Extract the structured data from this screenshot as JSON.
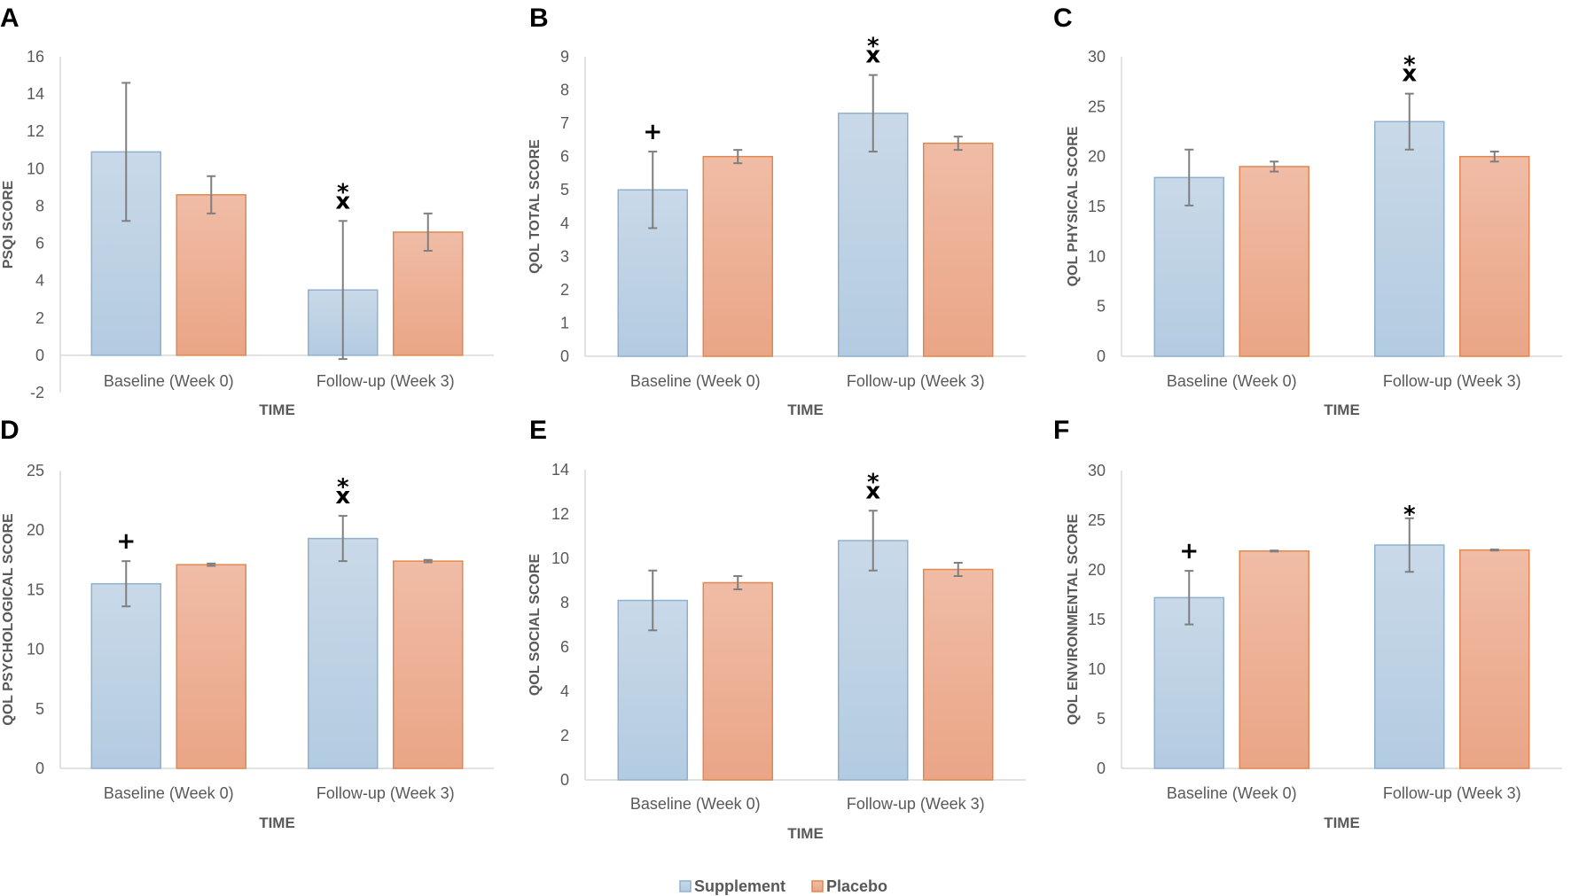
{
  "legend": [
    {
      "name": "Supplement",
      "color_top": "#c9d9e8",
      "color_bottom": "#b3cbe1",
      "stroke": "#8fb1d1"
    },
    {
      "name": "Placebo",
      "color_top": "#f0bca6",
      "color_bottom": "#eaa586",
      "stroke": "#e2884f"
    }
  ],
  "chart_data": [
    {
      "panel": "A",
      "type": "bar",
      "ylabel": "PSQI SCORE",
      "xlabel": "TIME",
      "categories": [
        "Baseline (Week 0)",
        "Follow-up (Week 3)"
      ],
      "ylim": [
        -2,
        16
      ],
      "yticks": [
        -2,
        0,
        2,
        4,
        6,
        8,
        10,
        12,
        14,
        16
      ],
      "series": [
        {
          "name": "Supplement",
          "values": [
            10.9,
            3.5
          ],
          "errors": [
            3.7,
            3.7
          ]
        },
        {
          "name": "Placebo",
          "values": [
            8.6,
            6.6
          ],
          "errors": [
            1.0,
            1.0
          ]
        }
      ],
      "annotations": [
        {
          "category": 1,
          "series": 0,
          "symbols": [
            "*",
            "x"
          ]
        }
      ]
    },
    {
      "panel": "B",
      "type": "bar",
      "ylabel": "QOL TOTAL SCORE",
      "xlabel": "TIME",
      "categories": [
        "Baseline (Week 0)",
        "Follow-up (Week 3)"
      ],
      "ylim": [
        0,
        9
      ],
      "yticks": [
        0,
        1,
        2,
        3,
        4,
        5,
        6,
        7,
        8,
        9
      ],
      "series": [
        {
          "name": "Supplement",
          "values": [
            5.0,
            7.3
          ],
          "errors": [
            1.15,
            1.15
          ]
        },
        {
          "name": "Placebo",
          "values": [
            6.0,
            6.4
          ],
          "errors": [
            0.2,
            0.2
          ]
        }
      ],
      "annotations": [
        {
          "category": 0,
          "series": 0,
          "symbols": [
            "+"
          ]
        },
        {
          "category": 1,
          "series": 0,
          "symbols": [
            "*",
            "x"
          ]
        }
      ]
    },
    {
      "panel": "C",
      "type": "bar",
      "ylabel": "QOL PHYSICAL SCORE",
      "xlabel": "TIME",
      "categories": [
        "Baseline (Week 0)",
        "Follow-up (Week 3)"
      ],
      "ylim": [
        0,
        30
      ],
      "yticks": [
        0,
        5,
        10,
        15,
        20,
        25,
        30
      ],
      "series": [
        {
          "name": "Supplement",
          "values": [
            17.9,
            23.5
          ],
          "errors": [
            2.8,
            2.8
          ]
        },
        {
          "name": "Placebo",
          "values": [
            19.0,
            20.0
          ],
          "errors": [
            0.5,
            0.5
          ]
        }
      ],
      "annotations": [
        {
          "category": 1,
          "series": 0,
          "symbols": [
            "*",
            "x"
          ]
        }
      ]
    },
    {
      "panel": "D",
      "type": "bar",
      "ylabel": "QOL PSYCHOLOGICAL SCORE",
      "xlabel": "TIME",
      "categories": [
        "Baseline (Week 0)",
        "Follow-up (Week 3)"
      ],
      "ylim": [
        0,
        25
      ],
      "yticks": [
        0,
        5,
        10,
        15,
        20,
        25
      ],
      "series": [
        {
          "name": "Supplement",
          "values": [
            15.5,
            19.3
          ],
          "errors": [
            1.9,
            1.9
          ]
        },
        {
          "name": "Placebo",
          "values": [
            17.1,
            17.4
          ],
          "errors": [
            0.1,
            0.1
          ]
        }
      ],
      "annotations": [
        {
          "category": 0,
          "series": 0,
          "symbols": [
            "+"
          ]
        },
        {
          "category": 1,
          "series": 0,
          "symbols": [
            "*",
            "x"
          ]
        }
      ]
    },
    {
      "panel": "E",
      "type": "bar",
      "ylabel": "QOL SOCIAL SCORE",
      "xlabel": "TIME",
      "categories": [
        "Baseline (Week 0)",
        "Follow-up (Week 3)"
      ],
      "ylim": [
        0,
        14
      ],
      "yticks": [
        0,
        2,
        4,
        6,
        8,
        10,
        12,
        14
      ],
      "series": [
        {
          "name": "Supplement",
          "values": [
            8.1,
            10.8
          ],
          "errors": [
            1.35,
            1.35
          ]
        },
        {
          "name": "Placebo",
          "values": [
            8.9,
            9.5
          ],
          "errors": [
            0.3,
            0.3
          ]
        }
      ],
      "annotations": [
        {
          "category": 1,
          "series": 0,
          "symbols": [
            "*",
            "x"
          ]
        }
      ]
    },
    {
      "panel": "F",
      "type": "bar",
      "ylabel": "QOL ENVIRONMENTAL SCORE",
      "xlabel": "TIME",
      "categories": [
        "Baseline (Week 0)",
        "Follow-up (Week 3)"
      ],
      "ylim": [
        0,
        30
      ],
      "yticks": [
        0,
        5,
        10,
        15,
        20,
        25,
        30
      ],
      "series": [
        {
          "name": "Supplement",
          "values": [
            17.2,
            22.5
          ],
          "errors": [
            2.7,
            2.7
          ]
        },
        {
          "name": "Placebo",
          "values": [
            21.9,
            22.0
          ],
          "errors": [
            0.05,
            0.05
          ]
        }
      ],
      "annotations": [
        {
          "category": 0,
          "series": 0,
          "symbols": [
            "+"
          ]
        },
        {
          "category": 1,
          "series": 0,
          "symbols": [
            "*"
          ]
        }
      ]
    }
  ]
}
